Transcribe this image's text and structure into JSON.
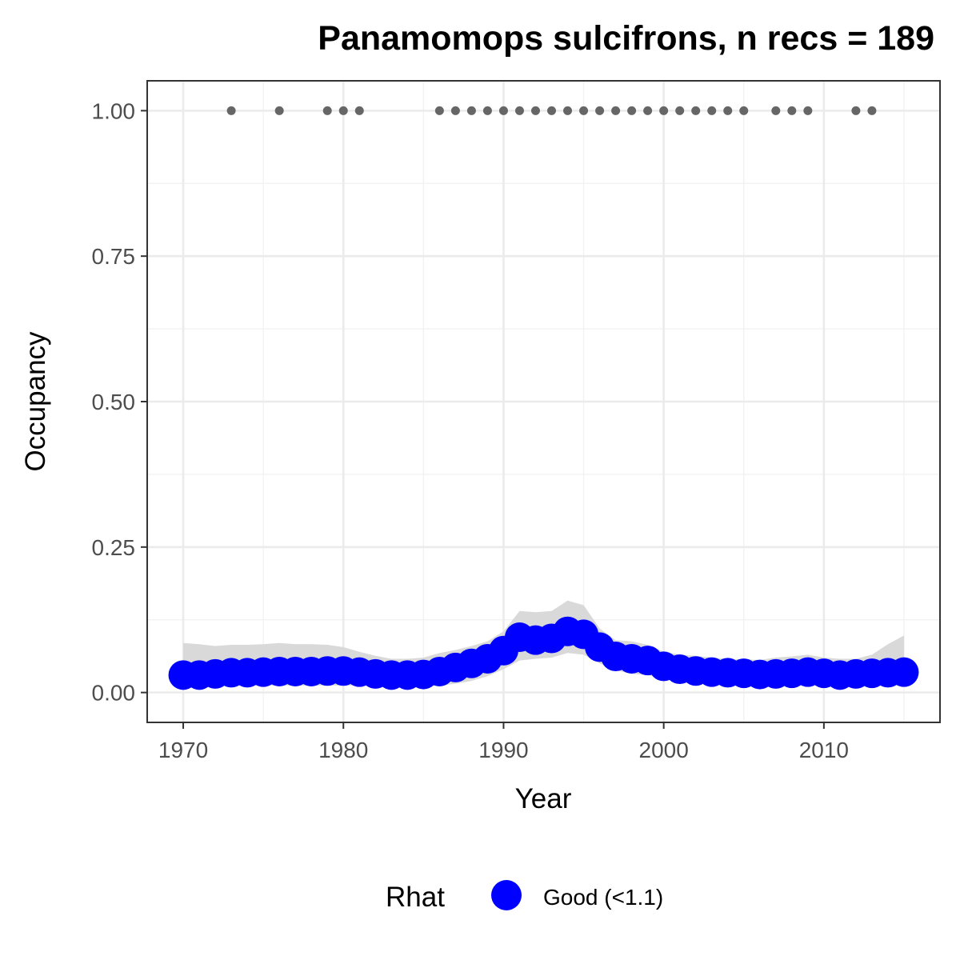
{
  "chart_data": {
    "type": "line",
    "title": "Panamomops sulcifrons, n recs = 189",
    "xlabel": "Year",
    "ylabel": "Occupancy",
    "xlim": [
      1967.8,
      2017.2
    ],
    "ylim": [
      -0.05,
      1.05
    ],
    "x_ticks": [
      1970,
      1980,
      1990,
      2000,
      2010
    ],
    "x_tick_labels": [
      "1970",
      "1980",
      "1990",
      "2000",
      "2010"
    ],
    "y_ticks": [
      0,
      0.25,
      0.5,
      0.75,
      1
    ],
    "y_tick_labels": [
      "0.00",
      "0.25",
      "0.50",
      "0.75",
      "1.00"
    ],
    "grid": true,
    "legend_position": "bottom",
    "legend": {
      "title": "Rhat",
      "items": [
        {
          "label": "Good (<1.1)",
          "color": "#0000ff"
        }
      ]
    },
    "series": [
      {
        "name": "Good (<1.1)",
        "color": "#0000ff",
        "x": [
          1970,
          1971,
          1972,
          1973,
          1974,
          1975,
          1976,
          1977,
          1978,
          1979,
          1980,
          1981,
          1982,
          1983,
          1984,
          1985,
          1986,
          1987,
          1988,
          1989,
          1990,
          1991,
          1992,
          1993,
          1994,
          1995,
          1996,
          1997,
          1998,
          1999,
          2000,
          2001,
          2002,
          2003,
          2004,
          2005,
          2006,
          2007,
          2008,
          2009,
          2010,
          2011,
          2012,
          2013,
          2014,
          2015
        ],
        "y": [
          0.03,
          0.03,
          0.032,
          0.034,
          0.034,
          0.035,
          0.036,
          0.036,
          0.036,
          0.037,
          0.037,
          0.035,
          0.032,
          0.03,
          0.03,
          0.031,
          0.036,
          0.043,
          0.05,
          0.058,
          0.072,
          0.095,
          0.09,
          0.093,
          0.105,
          0.1,
          0.078,
          0.062,
          0.058,
          0.055,
          0.045,
          0.04,
          0.037,
          0.035,
          0.034,
          0.033,
          0.031,
          0.032,
          0.033,
          0.035,
          0.033,
          0.03,
          0.032,
          0.033,
          0.034,
          0.035
        ]
      }
    ],
    "ribbon": {
      "color": "#d9d9d9",
      "x": [
        1970,
        1971,
        1972,
        1973,
        1974,
        1975,
        1976,
        1977,
        1978,
        1979,
        1980,
        1981,
        1982,
        1983,
        1984,
        1985,
        1986,
        1987,
        1988,
        1989,
        1990,
        1991,
        1992,
        1993,
        1994,
        1995,
        1996,
        1997,
        1998,
        1999,
        2000,
        2001,
        2002,
        2003,
        2004,
        2005,
        2006,
        2007,
        2008,
        2009,
        2010,
        2011,
        2012,
        2013,
        2014,
        2015
      ],
      "lower": [
        0.01,
        0.01,
        0.011,
        0.012,
        0.012,
        0.012,
        0.012,
        0.012,
        0.012,
        0.012,
        0.012,
        0.012,
        0.011,
        0.01,
        0.01,
        0.01,
        0.012,
        0.015,
        0.02,
        0.028,
        0.04,
        0.055,
        0.058,
        0.06,
        0.068,
        0.065,
        0.05,
        0.038,
        0.032,
        0.03,
        0.025,
        0.022,
        0.02,
        0.019,
        0.018,
        0.017,
        0.015,
        0.015,
        0.016,
        0.017,
        0.016,
        0.013,
        0.012,
        0.012,
        0.012,
        0.012
      ],
      "upper": [
        0.085,
        0.083,
        0.08,
        0.082,
        0.082,
        0.083,
        0.085,
        0.083,
        0.083,
        0.082,
        0.078,
        0.07,
        0.063,
        0.058,
        0.058,
        0.06,
        0.068,
        0.073,
        0.08,
        0.088,
        0.105,
        0.14,
        0.138,
        0.14,
        0.158,
        0.15,
        0.11,
        0.09,
        0.088,
        0.082,
        0.07,
        0.065,
        0.063,
        0.06,
        0.058,
        0.057,
        0.056,
        0.06,
        0.062,
        0.065,
        0.06,
        0.058,
        0.058,
        0.065,
        0.083,
        0.098
      ]
    },
    "detections": {
      "color": "#666666",
      "y": 1,
      "x": [
        1973,
        1976,
        1979,
        1980,
        1981,
        1986,
        1987,
        1988,
        1989,
        1990,
        1991,
        1992,
        1993,
        1994,
        1995,
        1996,
        1997,
        1998,
        1999,
        2000,
        2001,
        2002,
        2003,
        2004,
        2005,
        2007,
        2008,
        2009,
        2012,
        2013
      ]
    }
  }
}
